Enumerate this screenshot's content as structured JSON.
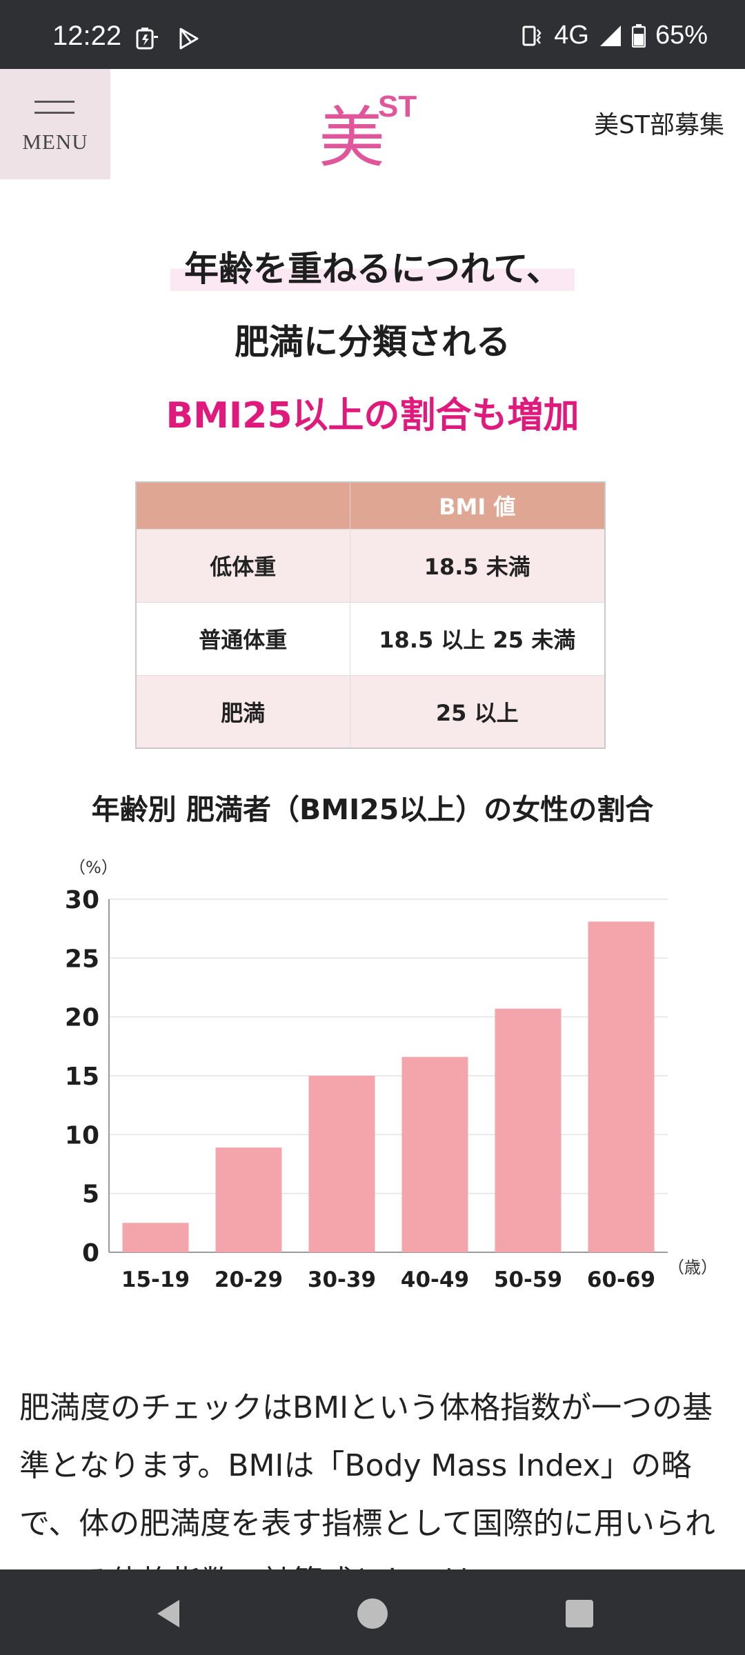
{
  "status_bar": {
    "time": "12:22",
    "network": "4G",
    "battery": "65%"
  },
  "header": {
    "menu_label": "MENU",
    "logo_kanji": "美",
    "logo_st": "ST",
    "recruit_link": "美ST部募集"
  },
  "headline": {
    "line1": "年齢を重ねるにつれて、",
    "line2": "肥満に分類される",
    "line3": "BMI25以上の割合も増加"
  },
  "bmi_table": {
    "header": [
      "",
      "BMI 値"
    ],
    "rows": [
      [
        "低体重",
        "18.5 未満"
      ],
      [
        "普通体重",
        "18.5 以上 25 未満"
      ],
      [
        "肥満",
        "25 以上"
      ]
    ]
  },
  "chart_data": {
    "type": "bar",
    "title": "年齢別 肥満者（BMI25以上）の女性の割合",
    "y_unit_label": "（%）",
    "x_unit_label": "（歳）",
    "categories": [
      "15-19",
      "20-29",
      "30-39",
      "40-49",
      "50-59",
      "60-69"
    ],
    "values": [
      2.5,
      8.9,
      15.0,
      16.6,
      20.7,
      28.1
    ],
    "yticks": [
      0,
      5,
      10,
      15,
      20,
      25,
      30
    ],
    "ylim": [
      0,
      30
    ],
    "grid": true,
    "bar_color": "#f4a5ab"
  },
  "body_text": "肥満度のチェックはBMIという体格指数が一つの基準となります。BMIは「Body Mass Index」の略で、体の肥満度を表す指標として国際的に用いられている体格指数。計算式としては"
}
